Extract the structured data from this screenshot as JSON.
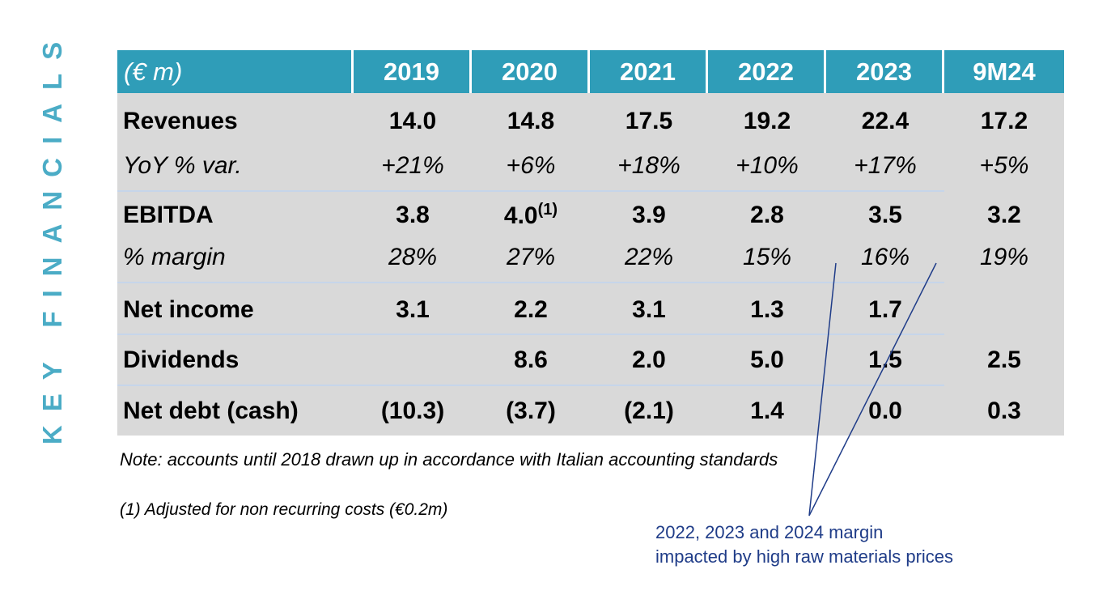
{
  "side_title": "KEY FINANCIALS",
  "table": {
    "header": [
      "(€ m)",
      "2019",
      "2020",
      "2021",
      "2022",
      "2023",
      "9M24"
    ],
    "rows": [
      {
        "label": "Revenues",
        "cells": [
          "14.0",
          "14.8",
          "17.5",
          "19.2",
          "22.4",
          "17.2"
        ]
      },
      {
        "label": "YoY % var.",
        "cells": [
          "+21%",
          "+6%",
          "+18%",
          "+10%",
          "+17%",
          "+5%"
        ]
      },
      {
        "label": "EBITDA",
        "cells": [
          "3.8",
          {
            "text": "4.0",
            "sup": "(1)"
          },
          "3.9",
          "2.8",
          "3.5",
          "3.2"
        ]
      },
      {
        "label": "% margin",
        "cells": [
          "28%",
          "27%",
          "22%",
          "15%",
          "16%",
          "19%"
        ]
      },
      {
        "label": "Net income",
        "cells": [
          "3.1",
          "2.2",
          "3.1",
          "1.3",
          "1.7",
          null
        ]
      },
      {
        "label": "Dividends",
        "cells": [
          null,
          "8.6",
          "2.0",
          "5.0",
          "1.5",
          "2.5"
        ]
      },
      {
        "label": "Net debt (cash)",
        "cells": [
          "(10.3)",
          "(3.7)",
          "(2.1)",
          "1.4",
          "0.0",
          "0.3"
        ]
      }
    ]
  },
  "note": "Note: accounts until 2018 drawn up in accordance with Italian accounting standards",
  "footnote": "(1) Adjusted for non recurring costs (€0.2m)",
  "annotation": [
    "2022, 2023 and 2024 margin",
    "impacted by high raw materials prices"
  ]
}
